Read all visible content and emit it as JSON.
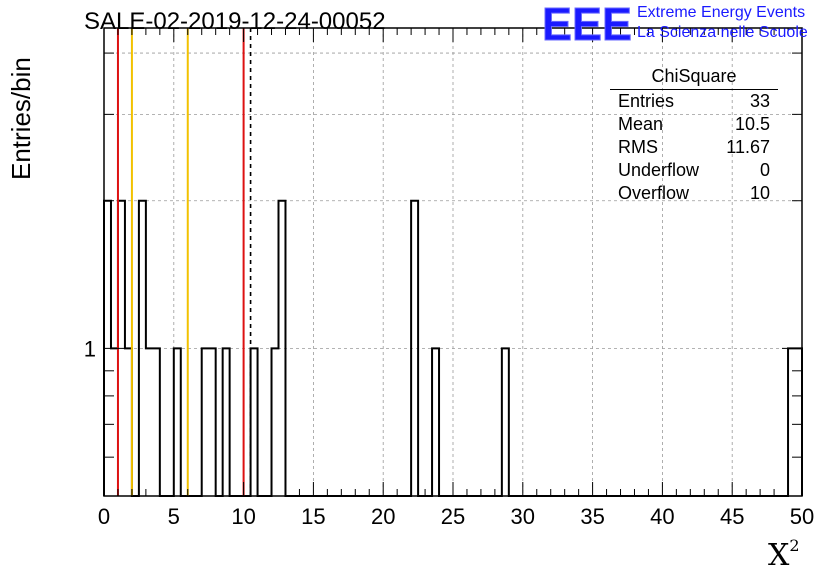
{
  "chart_data": {
    "type": "histogram",
    "title": "SALE-02-2019-12-24-00052",
    "xlabel": "X",
    "xlabel_superscript": "2",
    "ylabel": "Entries/bin",
    "xlim": [
      0,
      50
    ],
    "ylog": true,
    "ylim": [
      0.5,
      4.5
    ],
    "bin_width": 0.5,
    "xticks": [
      0,
      5,
      10,
      15,
      20,
      25,
      30,
      35,
      40,
      45,
      50
    ],
    "yticks": [
      1
    ],
    "grid": true,
    "bins": [
      {
        "x": 0.0,
        "count": 2
      },
      {
        "x": 0.5,
        "count": 1
      },
      {
        "x": 1.0,
        "count": 2
      },
      {
        "x": 1.5,
        "count": 1
      },
      {
        "x": 2.5,
        "count": 2
      },
      {
        "x": 3.0,
        "count": 1
      },
      {
        "x": 3.5,
        "count": 1
      },
      {
        "x": 5.0,
        "count": 1
      },
      {
        "x": 7.0,
        "count": 1
      },
      {
        "x": 7.5,
        "count": 1
      },
      {
        "x": 8.5,
        "count": 1
      },
      {
        "x": 10.5,
        "count": 1
      },
      {
        "x": 12.0,
        "count": 1
      },
      {
        "x": 12.5,
        "count": 2
      },
      {
        "x": 22.0,
        "count": 2
      },
      {
        "x": 23.5,
        "count": 1
      },
      {
        "x": 28.5,
        "count": 1
      },
      {
        "x": 49.0,
        "count": 1
      },
      {
        "x": 49.5,
        "count": 1
      }
    ],
    "vertical_lines": [
      {
        "x": 1,
        "color": "#dd1111",
        "style": "solid"
      },
      {
        "x": 2,
        "color": "#f2c200",
        "style": "solid"
      },
      {
        "x": 6,
        "color": "#f2c200",
        "style": "solid"
      },
      {
        "x": 10,
        "color": "#dd1111",
        "style": "solid"
      },
      {
        "x": 10.5,
        "color": "#000000",
        "style": "dashed"
      }
    ]
  },
  "stats_box": {
    "title": "ChiSquare",
    "rows": [
      {
        "label": "Entries",
        "value": "33"
      },
      {
        "label": "Mean",
        "value": "10.5"
      },
      {
        "label": "RMS",
        "value": "11.67"
      },
      {
        "label": "Underflow",
        "value": "0"
      },
      {
        "label": "Overflow",
        "value": "10"
      }
    ]
  },
  "logo": {
    "mark": "EEE",
    "line1": "Extreme Energy Events",
    "line2": "La Scienza nelle Scuole",
    "color": "#1a1aff"
  }
}
